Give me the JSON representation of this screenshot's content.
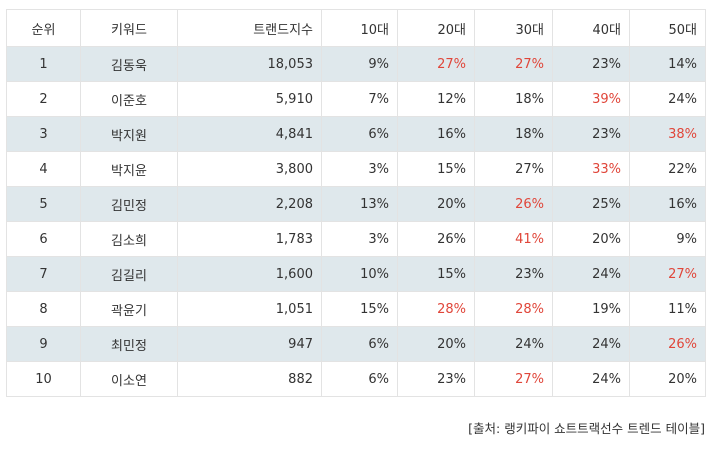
{
  "table": {
    "headers": [
      "순위",
      "키워드",
      "트랜드지수",
      "10대",
      "20대",
      "30대",
      "40대",
      "50대"
    ],
    "rows": [
      {
        "rank": "1",
        "keyword": "김동욱",
        "index": "18,053",
        "age": [
          "9%",
          "27%",
          "27%",
          "23%",
          "14%"
        ],
        "highlight": [
          false,
          true,
          true,
          false,
          false
        ]
      },
      {
        "rank": "2",
        "keyword": "이준호",
        "index": "5,910",
        "age": [
          "7%",
          "12%",
          "18%",
          "39%",
          "24%"
        ],
        "highlight": [
          false,
          false,
          false,
          true,
          false
        ]
      },
      {
        "rank": "3",
        "keyword": "박지원",
        "index": "4,841",
        "age": [
          "6%",
          "16%",
          "18%",
          "23%",
          "38%"
        ],
        "highlight": [
          false,
          false,
          false,
          false,
          true
        ]
      },
      {
        "rank": "4",
        "keyword": "박지윤",
        "index": "3,800",
        "age": [
          "3%",
          "15%",
          "27%",
          "33%",
          "22%"
        ],
        "highlight": [
          false,
          false,
          false,
          true,
          false
        ]
      },
      {
        "rank": "5",
        "keyword": "김민정",
        "index": "2,208",
        "age": [
          "13%",
          "20%",
          "26%",
          "25%",
          "16%"
        ],
        "highlight": [
          false,
          false,
          true,
          false,
          false
        ]
      },
      {
        "rank": "6",
        "keyword": "김소희",
        "index": "1,783",
        "age": [
          "3%",
          "26%",
          "41%",
          "20%",
          "9%"
        ],
        "highlight": [
          false,
          false,
          true,
          false,
          false
        ]
      },
      {
        "rank": "7",
        "keyword": "김길리",
        "index": "1,600",
        "age": [
          "10%",
          "15%",
          "23%",
          "24%",
          "27%"
        ],
        "highlight": [
          false,
          false,
          false,
          false,
          true
        ]
      },
      {
        "rank": "8",
        "keyword": "곽윤기",
        "index": "1,051",
        "age": [
          "15%",
          "28%",
          "28%",
          "19%",
          "11%"
        ],
        "highlight": [
          false,
          true,
          true,
          false,
          false
        ]
      },
      {
        "rank": "9",
        "keyword": "최민정",
        "index": "947",
        "age": [
          "6%",
          "20%",
          "24%",
          "24%",
          "26%"
        ],
        "highlight": [
          false,
          false,
          false,
          false,
          true
        ]
      },
      {
        "rank": "10",
        "keyword": "이소연",
        "index": "882",
        "age": [
          "6%",
          "23%",
          "27%",
          "24%",
          "20%"
        ],
        "highlight": [
          false,
          false,
          true,
          false,
          false
        ]
      }
    ]
  },
  "source_note": "[출처: 랭키파이 쇼트트랙선수 트렌드 테이블]",
  "colors": {
    "highlight": "#e0463a",
    "shaded_row": "#dfe8ec",
    "border": "#e3e3e3"
  }
}
